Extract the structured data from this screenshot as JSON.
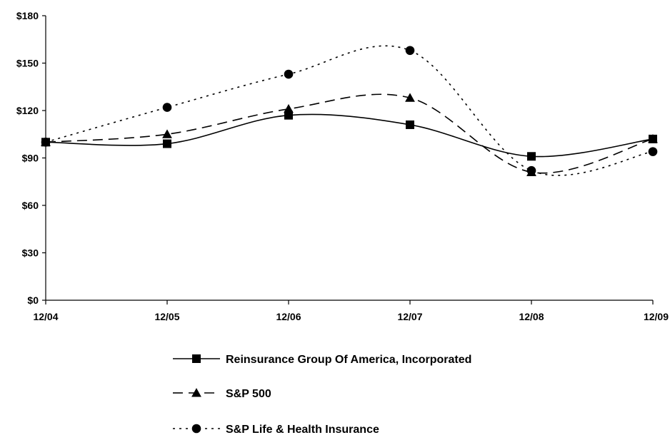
{
  "chart_data": {
    "type": "line",
    "categories": [
      "12/04",
      "12/05",
      "12/06",
      "12/07",
      "12/08",
      "12/09"
    ],
    "ylim": [
      0,
      180
    ],
    "yticks": [
      0,
      30,
      60,
      90,
      120,
      150,
      180
    ],
    "ytick_labels": [
      "$0",
      "$30",
      "$60",
      "$90",
      "$120",
      "$150",
      "$180"
    ],
    "grid": false,
    "legend": "bottom",
    "series": [
      {
        "name": "Reinsurance Group Of America, Incorporated",
        "values": [
          100,
          99,
          117,
          111,
          91,
          102
        ],
        "line_style": "solid",
        "marker": "square"
      },
      {
        "name": "S&P 500",
        "values": [
          100,
          105,
          121,
          128,
          81,
          102
        ],
        "line_style": "dashed",
        "marker": "triangle"
      },
      {
        "name": "S&P Life & Health Insurance",
        "values": [
          100,
          122,
          143,
          158,
          82,
          94
        ],
        "line_style": "dotted",
        "marker": "circle"
      }
    ]
  }
}
